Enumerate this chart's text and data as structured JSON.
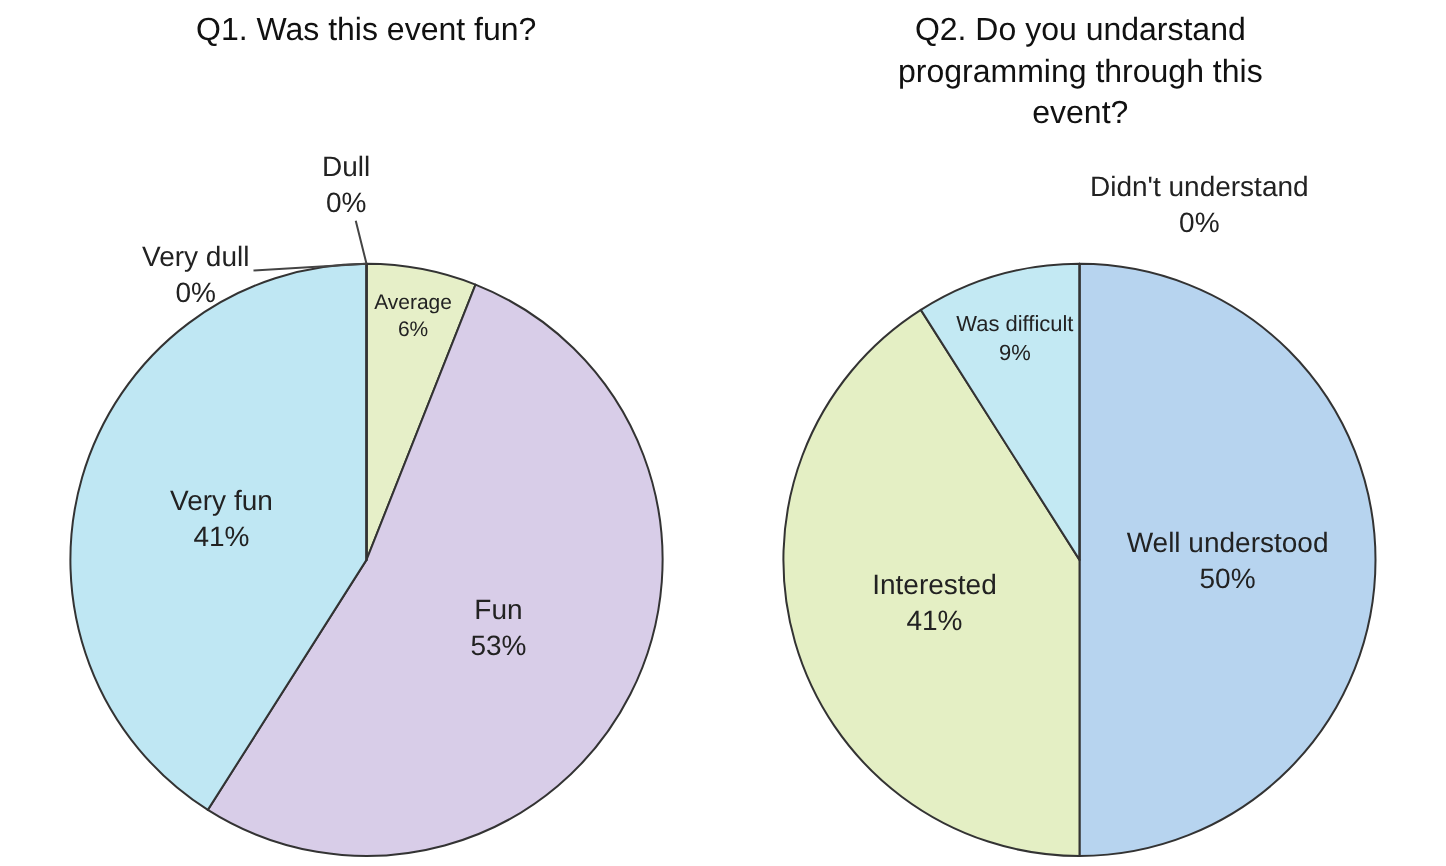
{
  "chart_data": [
    {
      "type": "pie",
      "title": "Q1. Was this event fun?",
      "categories": [
        "Average",
        "Fun",
        "Very fun",
        "Very dull",
        "Dull"
      ],
      "values": [
        6,
        53,
        41,
        0,
        0
      ],
      "value_labels": [
        "6%",
        "53%",
        "41%",
        "0%",
        "0%"
      ],
      "colors": [
        "#e6efc8",
        "#d8cde8",
        "#bfe7f3",
        "#e0e0e0",
        "#d0d0d0"
      ]
    },
    {
      "type": "pie",
      "title": "Q2. Do you undarstand programming through this event?",
      "categories": [
        "Well understood",
        "Interested",
        "Was difficult",
        "Didn't understand"
      ],
      "values": [
        50,
        41,
        9,
        0
      ],
      "value_labels": [
        "50%",
        "41%",
        "9%",
        "0%"
      ],
      "colors": [
        "#b7d4ef",
        "#e4efc4",
        "#c3e9f3",
        "#e0e0e0"
      ]
    }
  ]
}
